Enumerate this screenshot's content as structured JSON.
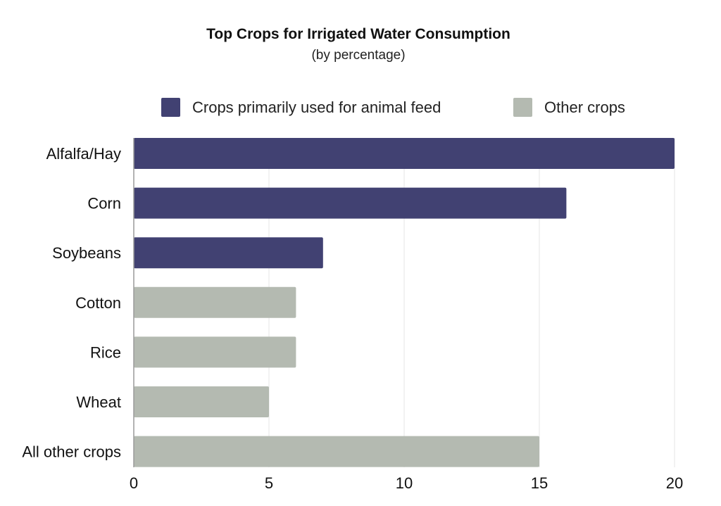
{
  "chart_data": {
    "type": "bar",
    "orientation": "horizontal",
    "title": "Top Crops for Irrigated Water Consumption",
    "subtitle": "(by percentage)",
    "categories": [
      "Alfalfa/Hay",
      "Corn",
      "Soybeans",
      "Cotton",
      "Rice",
      "Wheat",
      "All other crops"
    ],
    "values": [
      20,
      16,
      7,
      6,
      6,
      5,
      15
    ],
    "groups": [
      "feed",
      "feed",
      "feed",
      "other",
      "other",
      "other",
      "other"
    ],
    "legend": [
      {
        "key": "feed",
        "label": "Crops primarily used for animal feed",
        "color": "#414172"
      },
      {
        "key": "other",
        "label": "Other crops",
        "color": "#b4bab1"
      }
    ],
    "legend_position": "top",
    "xlim": [
      0,
      20
    ],
    "xticks": [
      0,
      5,
      10,
      15,
      20
    ],
    "xlabel": "",
    "ylabel": "",
    "grid": "vertical",
    "grid_color": "#e6e6e6",
    "axis_color": "#9a9a9a"
  }
}
